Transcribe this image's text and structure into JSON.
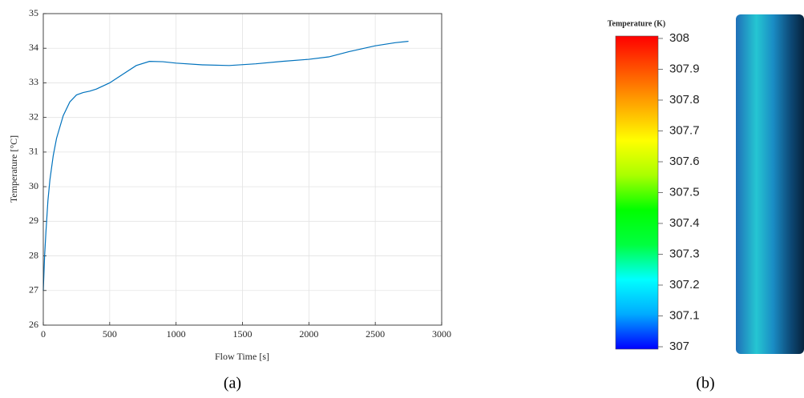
{
  "chart_data": [
    {
      "type": "line",
      "xlabel": "Flow Time [s]",
      "ylabel": "Temperature [°C]",
      "caption": "(a)",
      "x": [
        0,
        10,
        20,
        35,
        50,
        75,
        100,
        150,
        200,
        250,
        300,
        350,
        400,
        500,
        600,
        700,
        800,
        900,
        1000,
        1200,
        1400,
        1600,
        1800,
        2000,
        2150,
        2300,
        2500,
        2650,
        2750
      ],
      "values": [
        27,
        28,
        28.7,
        29.6,
        30.2,
        30.9,
        31.4,
        32.05,
        32.45,
        32.65,
        32.72,
        32.76,
        32.82,
        33.0,
        33.25,
        33.5,
        33.62,
        33.61,
        33.57,
        33.52,
        33.5,
        33.55,
        33.62,
        33.68,
        33.75,
        33.9,
        34.07,
        34.16,
        34.2
      ],
      "color": "#0072bd",
      "grid": true,
      "xlim": [
        0,
        3000
      ],
      "xticks": [
        0,
        500,
        1000,
        1500,
        2000,
        2500,
        3000
      ],
      "ylim": [
        26,
        35
      ],
      "yticks": [
        26,
        27,
        28,
        29,
        30,
        31,
        32,
        33,
        34,
        35
      ]
    },
    {
      "type": "colorbar",
      "title": "Temperature (K)",
      "caption": "(b)",
      "range": [
        307,
        308
      ],
      "ticks": [
        307,
        307.1,
        307.2,
        307.3,
        307.4,
        307.5,
        307.6,
        307.7,
        307.8,
        307.9,
        308
      ],
      "colors": [
        "#0000ff",
        "#00aaff",
        "#00ffff",
        "#00ff40",
        "#00ff00",
        "#aaff00",
        "#ffff00",
        "#ffaa00",
        "#ff5500",
        "#ff0000"
      ]
    }
  ]
}
